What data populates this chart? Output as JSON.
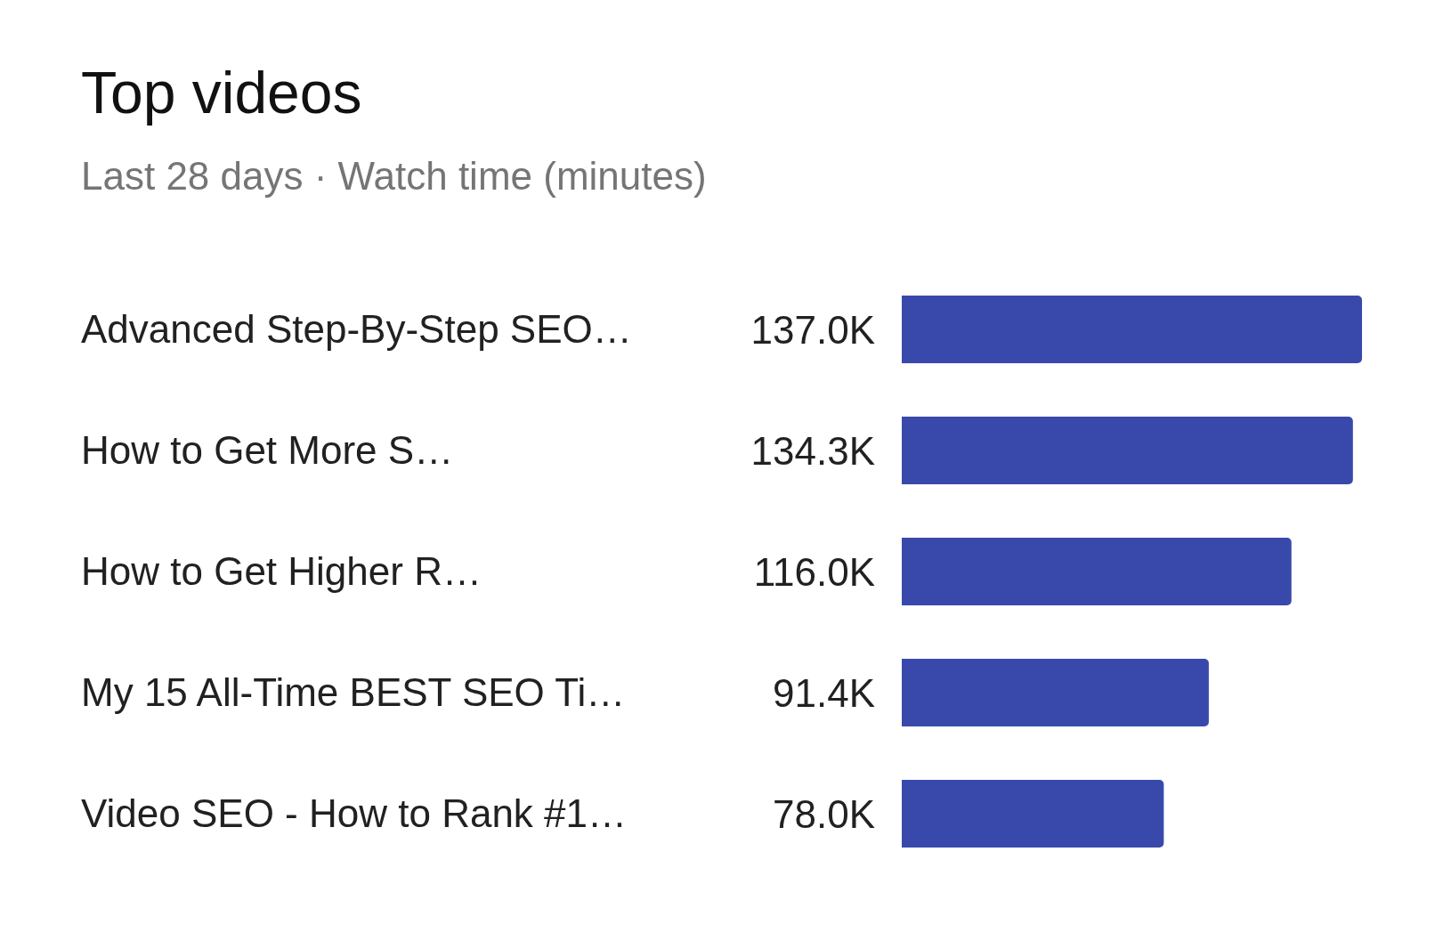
{
  "chart_data": {
    "type": "bar",
    "orientation": "horizontal",
    "title": "Top videos",
    "subtitle": "Last 28 days · Watch time (minutes)",
    "categories": [
      "Advanced Step-By-Step SEO…",
      "How to Get More S…",
      "How to Get Higher R…",
      "My 15 All-Time BEST SEO Ti…",
      "Video SEO - How to Rank #1…"
    ],
    "values": [
      137.0,
      134.3,
      116.0,
      91.4,
      78.0
    ],
    "value_labels": [
      "137.0K",
      "134.3K",
      "116.0K",
      "91.4K",
      "78.0K"
    ],
    "color": "#3949ab",
    "grid": false,
    "legend": false
  }
}
